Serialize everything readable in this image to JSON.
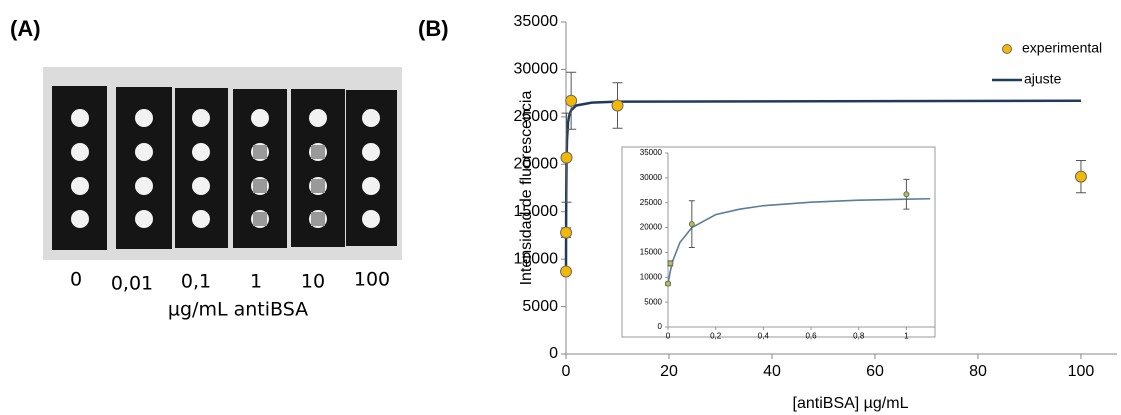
{
  "panel_a": {
    "label": "(A)",
    "concentrations": [
      "0",
      "0,01",
      "0,1",
      "1",
      "10",
      "100"
    ],
    "caption": "µg/mL antiBSA"
  },
  "chart_data": [
    {
      "type": "scatter",
      "title": "(B)",
      "x_label": "[antiBSA] µg/mL",
      "y_label": "Intensidad de fluorescencia",
      "xlim": [
        0,
        107
      ],
      "ylim": [
        0,
        35000
      ],
      "xticks": [
        0,
        20,
        40,
        60,
        80,
        100
      ],
      "yticks": [
        0,
        5000,
        10000,
        15000,
        20000,
        25000,
        30000,
        35000
      ],
      "legend": "upper right",
      "series": [
        {
          "name": "experimental",
          "type": "scatter",
          "color": "#f5b800",
          "x": [
            0,
            0.01,
            0.1,
            1,
            10,
            100
          ],
          "values": [
            8700,
            12800,
            20700,
            26700,
            26200,
            18700
          ],
          "errors": [
            300,
            500,
            4700,
            3000,
            2400,
            1700
          ]
        },
        {
          "name": "ajuste",
          "type": "line",
          "color": "#1f3b5c",
          "x": [
            0,
            0.01,
            0.02,
            0.05,
            0.1,
            0.2,
            0.4,
            0.6,
            1,
            2,
            5,
            10,
            100
          ],
          "values": [
            8700,
            11300,
            13300,
            17000,
            20000,
            22600,
            24400,
            25100,
            25700,
            26200,
            26500,
            26600,
            26700
          ]
        }
      ]
    },
    {
      "type": "scatter",
      "xlim": [
        0,
        1.12
      ],
      "ylim": [
        0,
        35000
      ],
      "xticks": [
        0,
        {
          "value": 0.2,
          "label": "0,2"
        },
        {
          "value": 0.4,
          "label": "0,4"
        },
        {
          "value": 0.6,
          "label": "0,6"
        },
        {
          "value": 0.8,
          "label": "0,8"
        },
        1
      ],
      "yticks": [
        0,
        5000,
        10000,
        15000,
        20000,
        25000,
        30000,
        35000
      ],
      "series": [
        {
          "type": "scatter",
          "color": "#b5c04a",
          "x": [
            0,
            0.01,
            0.1,
            1
          ],
          "values": [
            8700,
            12800,
            20700,
            26700
          ],
          "errors": [
            300,
            500,
            4700,
            3000
          ]
        },
        {
          "type": "line",
          "color": "#5b7d99",
          "x": [
            0,
            0.01,
            0.02,
            0.05,
            0.1,
            0.2,
            0.3,
            0.4,
            0.6,
            0.8,
            1,
            1.1
          ],
          "values": [
            8700,
            11300,
            13300,
            17000,
            20000,
            22600,
            23700,
            24400,
            25100,
            25500,
            25700,
            25800
          ]
        }
      ]
    }
  ]
}
